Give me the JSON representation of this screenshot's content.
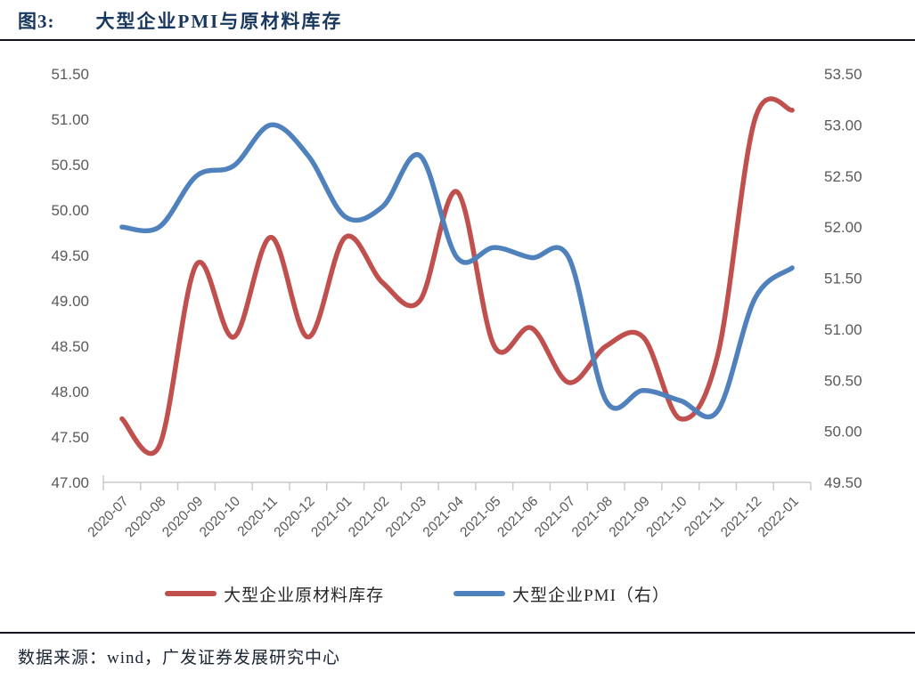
{
  "figure": {
    "label": "图3:",
    "title": "大型企业PMI与原材料库存"
  },
  "chart_data": {
    "type": "line",
    "smooth": true,
    "grid": false,
    "legend_position": "bottom",
    "x": [
      "2020-07",
      "2020-08",
      "2020-09",
      "2020-10",
      "2020-11",
      "2020-12",
      "2021-01",
      "2021-02",
      "2021-03",
      "2021-04",
      "2021-05",
      "2021-06",
      "2021-07",
      "2021-08",
      "2021-09",
      "2021-10",
      "2021-11",
      "2021-12",
      "2022-01"
    ],
    "series": [
      {
        "name": "大型企业原材料库存",
        "axis": "left",
        "color": "#C0504D",
        "values": [
          47.7,
          47.4,
          49.4,
          48.6,
          49.7,
          48.6,
          49.7,
          49.2,
          49.0,
          50.2,
          48.5,
          48.7,
          48.1,
          48.5,
          48.6,
          47.7,
          48.4,
          51.0,
          51.1
        ]
      },
      {
        "name": "大型企业PMI（右）",
        "axis": "right",
        "color": "#4F81BD",
        "values": [
          52.0,
          52.0,
          52.5,
          52.6,
          53.0,
          52.7,
          52.1,
          52.2,
          52.7,
          51.7,
          51.8,
          51.7,
          51.7,
          50.3,
          50.4,
          50.3,
          50.2,
          51.3,
          51.6
        ]
      }
    ],
    "left_axis": {
      "min": 47.0,
      "max": 51.5,
      "step": 0.5,
      "tick_labels": [
        "51.50",
        "51.00",
        "50.50",
        "50.00",
        "49.50",
        "49.00",
        "48.50",
        "48.00",
        "47.50",
        "47.00"
      ]
    },
    "right_axis": {
      "min": 49.5,
      "max": 53.5,
      "step": 0.5,
      "tick_labels": [
        "53.50",
        "53.00",
        "52.50",
        "52.00",
        "51.50",
        "51.00",
        "50.50",
        "50.00",
        "49.50"
      ]
    }
  },
  "colors": {
    "axis_text": "#595959",
    "axis_line": "#C9C9C9",
    "title": "#17375E"
  },
  "footer": {
    "source": "数据来源：wind，广发证券发展研究中心"
  }
}
